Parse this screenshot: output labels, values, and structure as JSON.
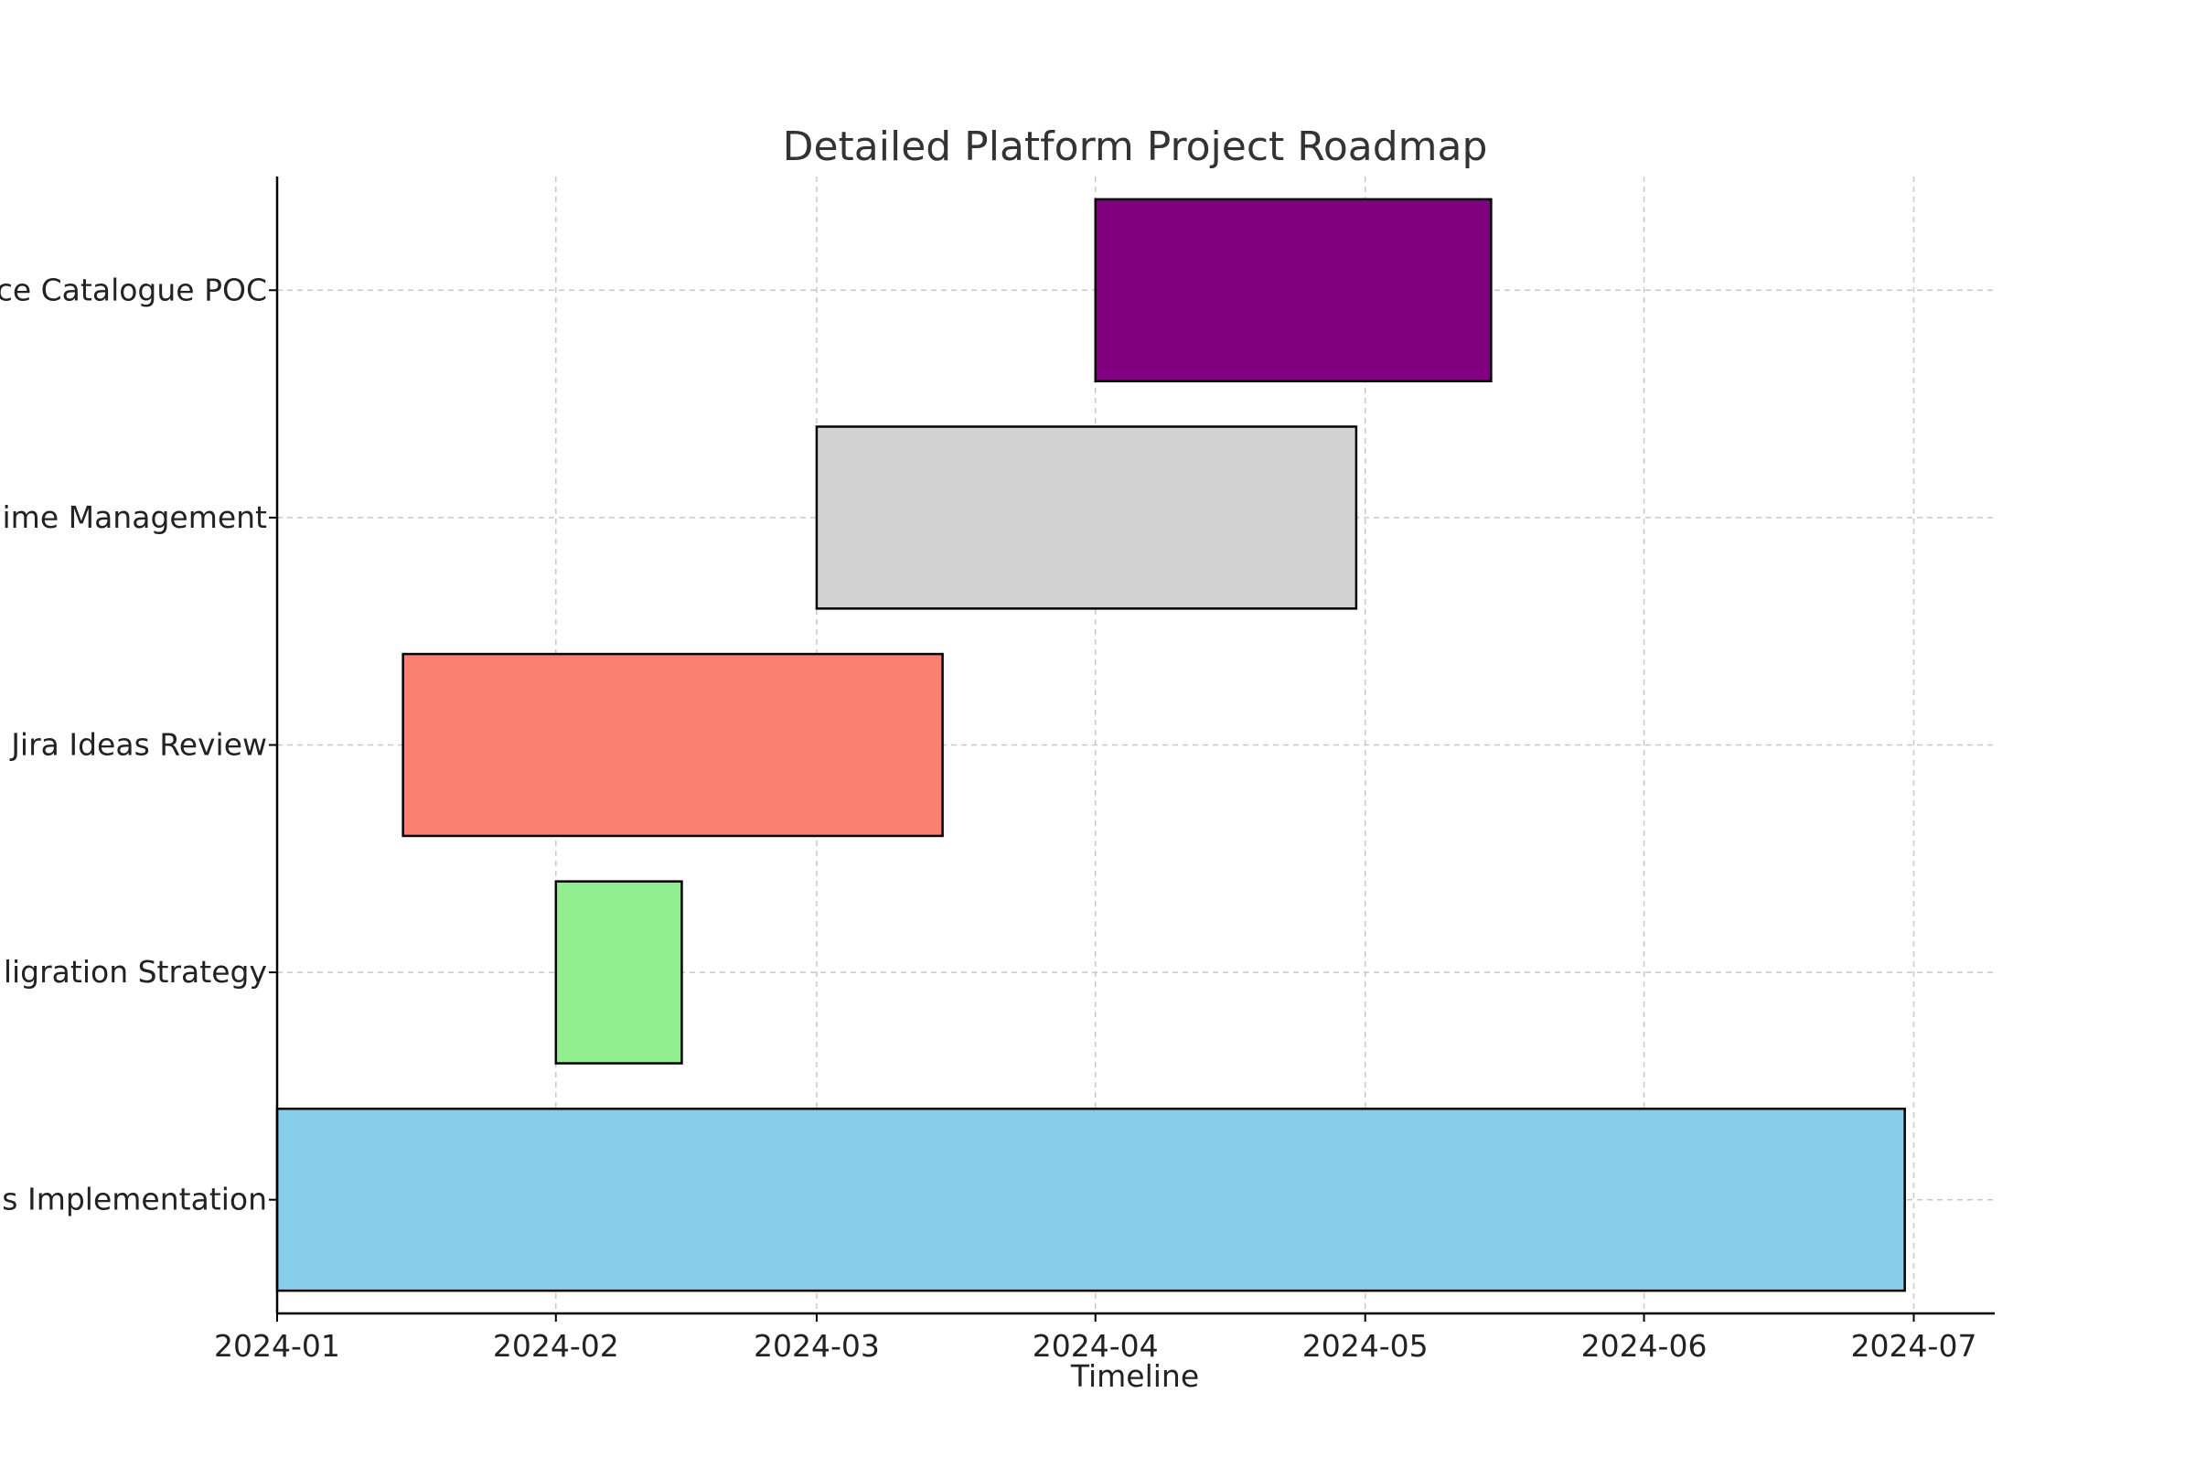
{
  "chart_data": {
    "type": "gantt",
    "title": "Detailed Platform Project Roadmap",
    "xlabel": "Timeline",
    "ylabel": "",
    "x_axis": {
      "type": "date",
      "range": [
        "2024-01-01",
        "2024-07-10"
      ],
      "ticks": [
        "2024-01-01",
        "2024-02-01",
        "2024-03-01",
        "2024-04-01",
        "2024-05-01",
        "2024-06-01",
        "2024-07-01"
      ],
      "tick_labels": [
        "2024-01",
        "2024-02",
        "2024-03",
        "2024-04",
        "2024-05",
        "2024-06",
        "2024-07"
      ]
    },
    "grid": true,
    "tasks": [
      {
        "label": "ce Catalogue POC",
        "start": "2024-04-01",
        "end": "2024-05-15",
        "color": "#800080"
      },
      {
        "label": "ime Management",
        "start": "2024-03-01",
        "end": "2024-04-30",
        "color": "#d3d3d3"
      },
      {
        "label": "Jira Ideas Review",
        "start": "2024-01-15",
        "end": "2024-03-15",
        "color": "#fa8072"
      },
      {
        "label": "ligration Strategy",
        "start": "2024-02-01",
        "end": "2024-02-15",
        "color": "#90ee90"
      },
      {
        "label": "s Implementation",
        "start": "2024-01-01",
        "end": "2024-06-30",
        "color": "#87ceeb"
      }
    ]
  }
}
